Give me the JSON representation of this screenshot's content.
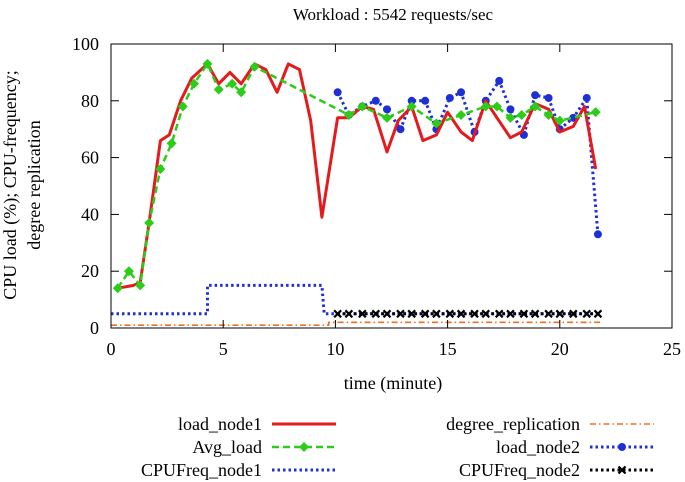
{
  "chart_data": {
    "type": "line",
    "title": "Workload : 5542 requests/sec",
    "xlabel": "time (minute)",
    "ylabel_lines": [
      "CPU load (%); CPU-frequency;",
      "degree replication"
    ],
    "xlim": [
      0,
      25
    ],
    "ylim": [
      0,
      100
    ],
    "xticks": [
      0,
      5,
      10,
      15,
      20,
      25
    ],
    "yticks": [
      0,
      20,
      40,
      60,
      80,
      100
    ],
    "xtick_labels": [
      "0",
      "5",
      "10",
      "15",
      "20",
      "25"
    ],
    "ytick_labels": [
      "0",
      "20",
      "40",
      "60",
      "80",
      "100"
    ],
    "grid": false,
    "legend_placement": "below",
    "series": [
      {
        "name": "load_node1",
        "color": "#e41a1c",
        "style": "solid",
        "marker": "none",
        "points": [
          [
            0.3,
            14
          ],
          [
            1.0,
            15
          ],
          [
            1.3,
            16
          ],
          [
            1.7,
            37
          ],
          [
            2.2,
            66
          ],
          [
            2.6,
            68
          ],
          [
            3.1,
            80
          ],
          [
            3.6,
            88
          ],
          [
            4.3,
            93
          ],
          [
            4.8,
            86
          ],
          [
            5.3,
            90
          ],
          [
            5.8,
            86
          ],
          [
            6.4,
            93
          ],
          [
            6.9,
            91
          ],
          [
            7.4,
            83
          ],
          [
            7.9,
            93
          ],
          [
            8.4,
            91
          ],
          [
            8.9,
            73
          ],
          [
            9.4,
            39
          ],
          [
            10.1,
            74
          ],
          [
            10.6,
            74
          ],
          [
            11.2,
            78
          ],
          [
            11.7,
            77
          ],
          [
            12.3,
            62
          ],
          [
            12.8,
            73
          ],
          [
            13.4,
            78
          ],
          [
            13.9,
            66
          ],
          [
            14.5,
            68
          ],
          [
            15.0,
            76
          ],
          [
            15.6,
            69
          ],
          [
            16.1,
            66
          ],
          [
            16.7,
            80
          ],
          [
            17.2,
            74
          ],
          [
            17.8,
            67
          ],
          [
            18.3,
            69
          ],
          [
            18.9,
            79
          ],
          [
            19.5,
            77
          ],
          [
            20.0,
            69
          ],
          [
            20.6,
            71
          ],
          [
            21.1,
            78
          ],
          [
            21.6,
            56
          ]
        ]
      },
      {
        "name": "Avg_load",
        "color": "#2ecc1a",
        "style": "dashed",
        "marker": "diamond",
        "points": [
          [
            0.3,
            14
          ],
          [
            0.8,
            20
          ],
          [
            1.3,
            15
          ],
          [
            1.7,
            37
          ],
          [
            2.2,
            56
          ],
          [
            2.7,
            65
          ],
          [
            3.2,
            78
          ],
          [
            3.7,
            86
          ],
          [
            4.3,
            93
          ],
          [
            4.8,
            84
          ],
          [
            5.4,
            86
          ],
          [
            5.8,
            83
          ],
          [
            6.4,
            92
          ],
          [
            10.6,
            75
          ],
          [
            11.2,
            78
          ],
          [
            12.3,
            74
          ],
          [
            13.4,
            78
          ],
          [
            14.5,
            72
          ],
          [
            15.6,
            75
          ],
          [
            16.7,
            78
          ],
          [
            17.2,
            78
          ],
          [
            17.8,
            74
          ],
          [
            18.3,
            75
          ],
          [
            18.9,
            78
          ],
          [
            19.5,
            75
          ],
          [
            20.0,
            73
          ],
          [
            21.6,
            76
          ]
        ]
      },
      {
        "name": "CPUFreq_node1",
        "color": "#1f2fd6",
        "style": "dotted",
        "marker": "none",
        "points": [
          [
            0.0,
            5
          ],
          [
            4.3,
            5
          ],
          [
            4.3,
            15
          ],
          [
            9.4,
            15
          ],
          [
            9.5,
            5
          ],
          [
            21.6,
            5
          ]
        ]
      },
      {
        "name": "degree_replication",
        "color": "#f07020",
        "style": "dashdot",
        "marker": "none",
        "points": [
          [
            0.0,
            1
          ],
          [
            9.7,
            1
          ],
          [
            9.7,
            2
          ],
          [
            21.9,
            2
          ]
        ]
      },
      {
        "name": "load_node2",
        "color": "#1f2fd6",
        "style": "dotted",
        "marker": "circle",
        "points": [
          [
            10.1,
            83
          ],
          [
            10.6,
            75
          ],
          [
            11.2,
            78
          ],
          [
            11.8,
            80
          ],
          [
            12.3,
            77
          ],
          [
            12.9,
            70
          ],
          [
            13.4,
            80
          ],
          [
            14.0,
            80
          ],
          [
            14.5,
            70
          ],
          [
            15.1,
            81
          ],
          [
            15.6,
            83
          ],
          [
            16.2,
            69
          ],
          [
            16.7,
            80
          ],
          [
            17.3,
            87
          ],
          [
            17.8,
            77
          ],
          [
            18.4,
            68
          ],
          [
            18.9,
            82
          ],
          [
            19.5,
            81
          ],
          [
            20.0,
            70
          ],
          [
            20.6,
            74
          ],
          [
            21.2,
            81
          ],
          [
            21.7,
            33
          ]
        ]
      },
      {
        "name": "CPUFreq_node2",
        "color": "#000000",
        "style": "dotted",
        "marker": "x",
        "points": [
          [
            10.1,
            5
          ],
          [
            10.6,
            5
          ],
          [
            11.2,
            5
          ],
          [
            11.8,
            5
          ],
          [
            12.3,
            5
          ],
          [
            12.9,
            5
          ],
          [
            13.4,
            5
          ],
          [
            14.0,
            5
          ],
          [
            14.5,
            5
          ],
          [
            15.1,
            5
          ],
          [
            15.6,
            5
          ],
          [
            16.2,
            5
          ],
          [
            16.7,
            5
          ],
          [
            17.3,
            5
          ],
          [
            17.8,
            5
          ],
          [
            18.4,
            5
          ],
          [
            18.9,
            5
          ],
          [
            19.5,
            5
          ],
          [
            20.0,
            5
          ],
          [
            20.6,
            5
          ],
          [
            21.2,
            5
          ],
          [
            21.7,
            5
          ]
        ]
      }
    ],
    "legend": [
      {
        "series": 0,
        "label": "load_node1",
        "column": "left",
        "row": 0
      },
      {
        "series": 1,
        "label": "Avg_load",
        "column": "left",
        "row": 1
      },
      {
        "series": 2,
        "label": "CPUFreq_node1",
        "column": "left",
        "row": 2
      },
      {
        "series": 3,
        "label": "degree_replication",
        "column": "right",
        "row": 0
      },
      {
        "series": 4,
        "label": "load_node2",
        "column": "right",
        "row": 1
      },
      {
        "series": 5,
        "label": "CPUFreq_node2",
        "column": "right",
        "row": 2
      }
    ]
  }
}
